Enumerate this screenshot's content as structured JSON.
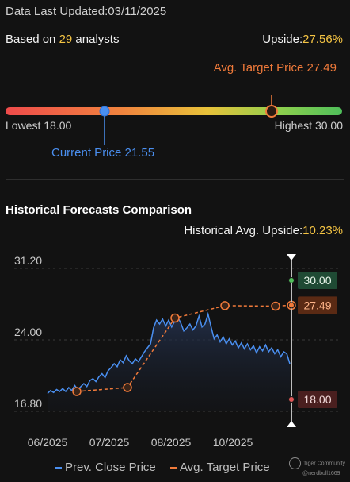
{
  "header": {
    "updated_label": "Data Last Updated:",
    "updated_value": "03/11/2025",
    "analysts_prefix": "Based on",
    "analysts_count": "29",
    "analysts_suffix": "analysts",
    "upside_label": "Upside:",
    "upside_value": "27.56%"
  },
  "range": {
    "avg_target_label": "Avg. Target Price 27.49",
    "lowest_label": "Lowest 18.00",
    "highest_label": "Highest 30.00",
    "current_label": "Current Price 21.55",
    "low": 18.0,
    "high": 30.0,
    "current": 21.55,
    "target": 27.49
  },
  "historical": {
    "title": "Historical Forecasts Comparison",
    "upside_label": "Historical Avg. Upside:",
    "upside_value": "10.23%"
  },
  "legend": {
    "prev_close": "Prev. Close Price",
    "avg_target": "Avg. Target Price"
  },
  "brand": {
    "name": "Tiger Community",
    "user": "@nerdbull1669"
  },
  "colors": {
    "price_line": "#4a8ff0",
    "target_line": "#f07a3a",
    "high_badge": "#1f4a34",
    "target_badge": "#5a2a14",
    "low_badge": "#4a1f1f"
  },
  "chart_data": {
    "type": "line",
    "x_tick_labels": [
      "06/2025",
      "07/2025",
      "08/2025",
      "10/2025"
    ],
    "y_tick_labels": [
      "31.20",
      "24.00",
      "16.80"
    ],
    "ylim": [
      16.8,
      31.2
    ],
    "grid": true,
    "series": [
      {
        "name": "Prev. Close Price",
        "values": [
          18.6,
          18.9,
          18.7,
          19.0,
          18.8,
          19.1,
          18.8,
          19.2,
          18.9,
          19.4,
          19.0,
          19.3,
          19.6,
          19.3,
          19.9,
          20.1,
          19.8,
          20.3,
          20.6,
          20.2,
          20.9,
          21.2,
          21.6,
          21.3,
          22.0,
          21.7,
          22.4,
          21.9,
          21.6,
          22.1,
          21.8,
          22.3,
          22.8,
          23.2,
          23.6,
          25.2,
          26.0,
          25.6,
          26.1,
          25.4,
          26.0,
          25.3,
          25.9,
          26.3,
          25.7,
          24.9,
          25.2,
          25.6,
          25.0,
          25.4,
          26.4,
          25.3,
          25.6,
          26.6,
          25.3,
          24.1,
          24.5,
          23.8,
          24.3,
          23.6,
          24.1,
          23.5,
          23.9,
          23.2,
          23.7,
          23.1,
          23.6,
          23.0,
          23.4,
          22.7,
          23.3,
          22.9,
          23.5,
          22.8,
          23.2,
          22.6,
          23.0,
          22.3,
          22.8,
          22.6,
          21.6
        ],
        "color": "#4a8ff0"
      },
      {
        "name": "Avg. Target Price",
        "values": [
          18.8,
          19.2,
          26.2,
          27.45,
          27.4,
          27.49
        ],
        "color": "#f07a3a"
      }
    ],
    "range_markers": {
      "high": "30.00",
      "target": "27.49",
      "low": "18.00"
    }
  }
}
